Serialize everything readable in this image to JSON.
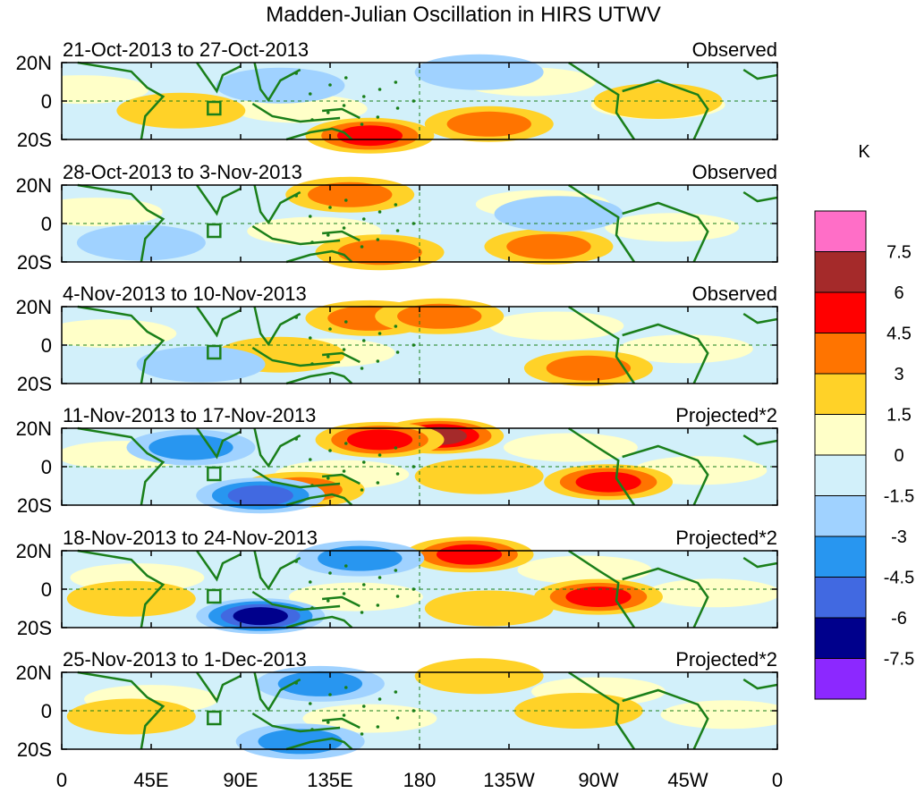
{
  "chart_data": {
    "type": "heatmap",
    "title": "Madden-Julian Oscillation in HIRS UTWV",
    "variable": "HIRS UTWV",
    "units": "K",
    "lon_ticks": [
      "0",
      "45E",
      "90E",
      "135E",
      "180",
      "135W",
      "90W",
      "45W",
      "0"
    ],
    "lat_ticks": [
      "20N",
      "0",
      "20S"
    ],
    "lon_range": [
      0,
      360
    ],
    "lat_range": [
      -20,
      20
    ],
    "colorbar": {
      "label": "K",
      "levels": [
        "7.5",
        "6",
        "4.5",
        "3",
        "1.5",
        "0",
        "-1.5",
        "-3",
        "-4.5",
        "-6",
        "-7.5"
      ],
      "level_values": [
        7.5,
        6,
        4.5,
        3,
        1.5,
        0,
        -1.5,
        -3,
        -4.5,
        -6,
        -7.5
      ],
      "colors": [
        "#ff6ec7",
        "#a52a2a",
        "#ff0000",
        "#ff7400",
        "#ffd228",
        "#ffffc8",
        "#d2f0fa",
        "#a0d2ff",
        "#2896f0",
        "#4169e1",
        "#00008c",
        "#8c28ff"
      ]
    },
    "panels": [
      {
        "period": "21-Oct-2013 to 27-Oct-2013",
        "kind": "Observed",
        "anomalies": [
          {
            "lon": 215,
            "lat": -12,
            "value": 3.5
          },
          {
            "lon": 155,
            "lat": -18,
            "value": 4.5
          },
          {
            "lon": 210,
            "lat": 15,
            "value": -2.0
          },
          {
            "lon": 60,
            "lat": -5,
            "value": 2.0
          },
          {
            "lon": 110,
            "lat": 8,
            "value": -1.5
          },
          {
            "lon": 300,
            "lat": 0,
            "value": 2.0
          }
        ]
      },
      {
        "period": "28-Oct-2013 to 3-Nov-2013",
        "kind": "Observed",
        "anomalies": [
          {
            "lon": 145,
            "lat": 15,
            "value": 3.5
          },
          {
            "lon": 245,
            "lat": -12,
            "value": 4.0
          },
          {
            "lon": 160,
            "lat": -15,
            "value": 3.0
          },
          {
            "lon": 40,
            "lat": -10,
            "value": -2.0
          },
          {
            "lon": 250,
            "lat": 5,
            "value": -1.5
          }
        ]
      },
      {
        "period": "4-Nov-2013 to 10-Nov-2013",
        "kind": "Observed",
        "anomalies": [
          {
            "lon": 155,
            "lat": 14,
            "value": 4.0
          },
          {
            "lon": 190,
            "lat": 15,
            "value": 3.0
          },
          {
            "lon": 265,
            "lat": -12,
            "value": 3.5
          },
          {
            "lon": 110,
            "lat": -5,
            "value": 2.0
          },
          {
            "lon": 70,
            "lat": -10,
            "value": -1.5
          }
        ]
      },
      {
        "period": "11-Nov-2013 to 17-Nov-2013",
        "kind": "Projected*2",
        "anomalies": [
          {
            "lon": 190,
            "lat": 16,
            "value": 6.5
          },
          {
            "lon": 160,
            "lat": 14,
            "value": 5.0
          },
          {
            "lon": 275,
            "lat": -8,
            "value": 5.0
          },
          {
            "lon": 120,
            "lat": -12,
            "value": 3.5
          },
          {
            "lon": 65,
            "lat": 10,
            "value": -4.0
          },
          {
            "lon": 100,
            "lat": -15,
            "value": -4.5
          },
          {
            "lon": 210,
            "lat": -5,
            "value": 2.5
          }
        ]
      },
      {
        "period": "18-Nov-2013 to 24-Nov-2013",
        "kind": "Projected*2",
        "anomalies": [
          {
            "lon": 205,
            "lat": 18,
            "value": 5.0
          },
          {
            "lon": 270,
            "lat": -4,
            "value": 4.5
          },
          {
            "lon": 100,
            "lat": -14,
            "value": -6.0
          },
          {
            "lon": 150,
            "lat": 16,
            "value": -3.0
          },
          {
            "lon": 35,
            "lat": -5,
            "value": 2.0
          },
          {
            "lon": 215,
            "lat": -10,
            "value": 2.5
          }
        ]
      },
      {
        "period": "25-Nov-2013 to 1-Dec-2013",
        "kind": "Projected*2",
        "anomalies": [
          {
            "lon": 130,
            "lat": 14,
            "value": -3.0
          },
          {
            "lon": 35,
            "lat": -3,
            "value": 2.5
          },
          {
            "lon": 120,
            "lat": -16,
            "value": -3.5
          },
          {
            "lon": 210,
            "lat": 18,
            "value": 2.0
          },
          {
            "lon": 260,
            "lat": 0,
            "value": 1.5
          }
        ]
      }
    ]
  }
}
